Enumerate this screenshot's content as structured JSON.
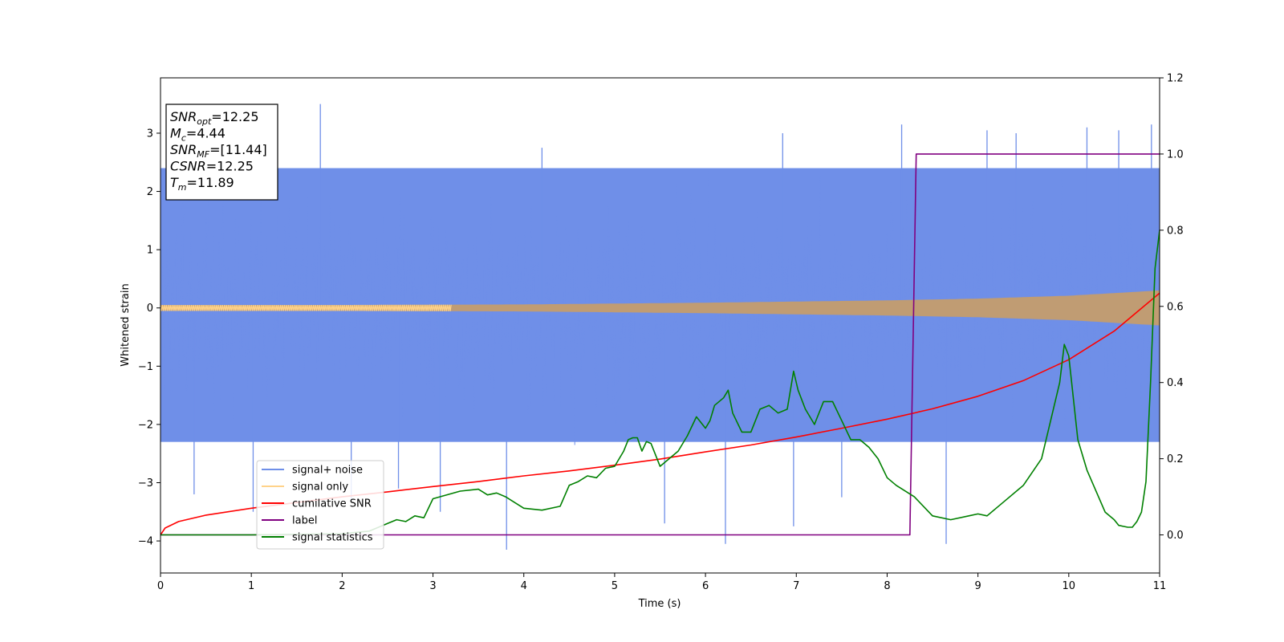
{
  "chart_data": {
    "type": "line",
    "xlabel": "Time (s)",
    "ylabel": "Whitened strain",
    "xlim": [
      0,
      11
    ],
    "ylim": [
      -4.55,
      3.95
    ],
    "y2lim": [
      -0.1,
      1.2
    ],
    "x_ticks": [
      "0",
      "1",
      "2",
      "3",
      "4",
      "5",
      "6",
      "7",
      "8",
      "9",
      "10",
      "11"
    ],
    "y_ticks": [
      "−4",
      "−3",
      "−2",
      "−1",
      "0",
      "1",
      "2",
      "3"
    ],
    "y2_ticks": [
      "0.0",
      "0.2",
      "0.4",
      "0.6",
      "0.8",
      "1.0",
      "1.2"
    ],
    "grid": false,
    "legend_position": "lower-left",
    "legend": [
      {
        "label": "signal+ noise",
        "color": "#6f8fe8"
      },
      {
        "label": "signal only",
        "color": "#ffd38a"
      },
      {
        "label": "cumilative SNR",
        "color": "#ff0000"
      },
      {
        "label": "label",
        "color": "#800080"
      },
      {
        "label": "signal statistics",
        "color": "#008000"
      }
    ],
    "annotation": {
      "lines": [
        {
          "sym": "SNR",
          "sub": "opt",
          "value": "=12.25"
        },
        {
          "sym": "M",
          "sub": "c",
          "value": "=4.44"
        },
        {
          "sym": "SNR",
          "sub": "MF",
          "value": "=[11.44]"
        },
        {
          "sym": "CSNR",
          "sub": "",
          "value": "=12.25"
        },
        {
          "sym": "T",
          "sub": "m",
          "value": "=11.89"
        }
      ]
    },
    "series": [
      {
        "name": "signal+ noise",
        "axis": "left",
        "color": "#6f8fe8",
        "style": "noise band",
        "band_upper": 2.4,
        "band_lower": -2.3,
        "peaks": [
          [
            0.37,
            -3.2
          ],
          [
            1.02,
            -3.5
          ],
          [
            1.76,
            3.5
          ],
          [
            2.1,
            -3.3
          ],
          [
            2.62,
            -3.1
          ],
          [
            3.08,
            -3.5
          ],
          [
            3.81,
            -4.15
          ],
          [
            4.2,
            2.75
          ],
          [
            5.55,
            -3.7
          ],
          [
            6.22,
            -4.05
          ],
          [
            6.85,
            3.0
          ],
          [
            6.97,
            -3.75
          ],
          [
            7.5,
            -3.25
          ],
          [
            8.16,
            3.15
          ],
          [
            8.65,
            -4.05
          ],
          [
            9.1,
            3.05
          ],
          [
            9.42,
            3.0
          ],
          [
            10.2,
            3.1
          ],
          [
            10.55,
            3.05
          ],
          [
            10.91,
            3.15
          ]
        ]
      },
      {
        "name": "signal only",
        "axis": "left",
        "color": "#ffd38a",
        "style": "chirp envelope",
        "amplitude": [
          [
            0,
            0.05
          ],
          [
            2,
            0.05
          ],
          [
            4,
            0.06
          ],
          [
            6,
            0.09
          ],
          [
            8,
            0.13
          ],
          [
            9,
            0.16
          ],
          [
            10,
            0.21
          ],
          [
            11,
            0.3
          ]
        ]
      },
      {
        "name": "cumilative SNR",
        "axis": "right",
        "color": "#ff0000",
        "x": [
          0,
          0.05,
          0.2,
          0.5,
          1,
          1.5,
          2,
          2.5,
          3,
          3.5,
          4,
          4.5,
          5,
          5.5,
          6,
          6.5,
          7,
          7.5,
          8,
          8.5,
          9,
          9.5,
          10,
          10.5,
          11
        ],
        "y": [
          0.0,
          0.018,
          0.035,
          0.052,
          0.07,
          0.085,
          0.1,
          0.113,
          0.127,
          0.14,
          0.155,
          0.168,
          0.183,
          0.199,
          0.218,
          0.236,
          0.257,
          0.28,
          0.304,
          0.331,
          0.364,
          0.405,
          0.46,
          0.535,
          0.635
        ]
      },
      {
        "name": "label",
        "axis": "right",
        "color": "#800080",
        "x": [
          0,
          8.25,
          8.32,
          11
        ],
        "y": [
          0,
          0,
          1,
          1
        ]
      },
      {
        "name": "signal statistics",
        "axis": "right",
        "color": "#008000",
        "x": [
          0,
          1,
          2,
          2.3,
          2.5,
          2.6,
          2.7,
          2.8,
          2.9,
          3.0,
          3.3,
          3.5,
          3.6,
          3.7,
          3.8,
          4.0,
          4.2,
          4.4,
          4.5,
          4.6,
          4.7,
          4.8,
          4.9,
          5.0,
          5.1,
          5.15,
          5.2,
          5.25,
          5.3,
          5.35,
          5.4,
          5.5,
          5.6,
          5.7,
          5.8,
          5.9,
          6.0,
          6.05,
          6.1,
          6.2,
          6.25,
          6.3,
          6.4,
          6.5,
          6.6,
          6.7,
          6.8,
          6.9,
          6.97,
          7.02,
          7.1,
          7.2,
          7.3,
          7.4,
          7.5,
          7.6,
          7.7,
          7.8,
          7.9,
          8.0,
          8.1,
          8.3,
          8.5,
          8.7,
          8.9,
          9.0,
          9.1,
          9.2,
          9.3,
          9.5,
          9.7,
          9.8,
          9.9,
          9.95,
          10.0,
          10.1,
          10.2,
          10.4,
          10.5,
          10.55,
          10.65,
          10.7,
          10.75,
          10.8,
          10.85,
          10.9,
          10.95,
          11.0
        ],
        "y": [
          0.0,
          0.0,
          0.003,
          0.01,
          0.03,
          0.04,
          0.035,
          0.05,
          0.045,
          0.095,
          0.115,
          0.12,
          0.105,
          0.11,
          0.1,
          0.07,
          0.065,
          0.075,
          0.13,
          0.14,
          0.155,
          0.15,
          0.175,
          0.18,
          0.22,
          0.25,
          0.255,
          0.255,
          0.22,
          0.245,
          0.24,
          0.18,
          0.2,
          0.22,
          0.26,
          0.31,
          0.28,
          0.3,
          0.34,
          0.36,
          0.38,
          0.32,
          0.27,
          0.27,
          0.33,
          0.34,
          0.32,
          0.33,
          0.43,
          0.38,
          0.33,
          0.29,
          0.35,
          0.35,
          0.3,
          0.25,
          0.25,
          0.23,
          0.2,
          0.15,
          0.13,
          0.1,
          0.05,
          0.04,
          0.05,
          0.055,
          0.05,
          0.07,
          0.09,
          0.13,
          0.2,
          0.3,
          0.4,
          0.5,
          0.47,
          0.25,
          0.17,
          0.06,
          0.04,
          0.025,
          0.02,
          0.02,
          0.035,
          0.06,
          0.14,
          0.4,
          0.7,
          0.8
        ]
      }
    ]
  }
}
